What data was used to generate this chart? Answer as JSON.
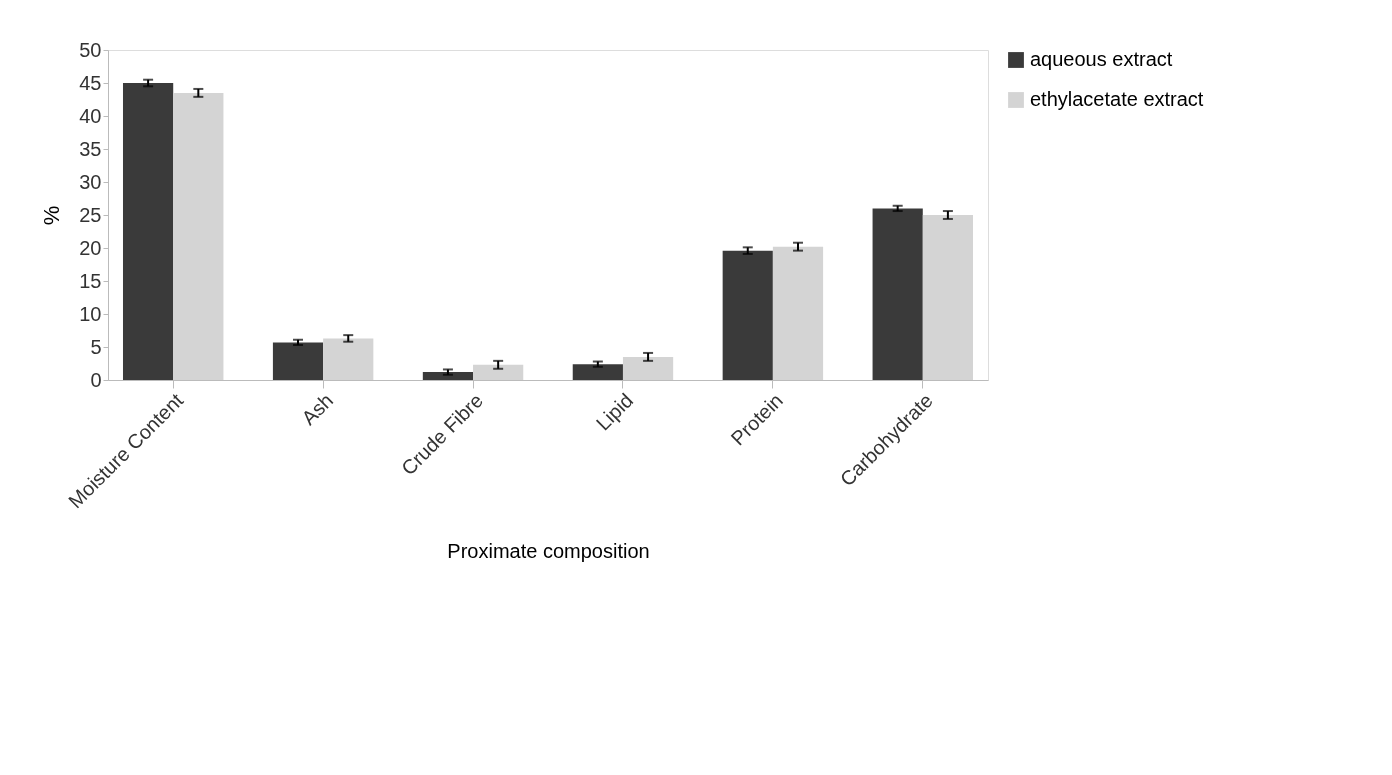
{
  "chart_data": {
    "type": "bar",
    "xlabel": "Proximate composition",
    "ylabel": "%",
    "categories": [
      "Moisture Content",
      "Ash",
      "Crude Fibre",
      "Lipid",
      "Protein",
      "Carbohydrate"
    ],
    "series": [
      {
        "name": "aqueous extract",
        "color": "#3a3a3a",
        "values": [
          45.0,
          5.7,
          1.2,
          2.4,
          19.6,
          26.0
        ],
        "errors": [
          0.5,
          0.4,
          0.4,
          0.4,
          0.5,
          0.4
        ]
      },
      {
        "name": "ethylacetate extract",
        "color": "#d4d4d4",
        "values": [
          43.5,
          6.3,
          2.3,
          3.5,
          20.2,
          25.0
        ],
        "errors": [
          0.6,
          0.5,
          0.6,
          0.6,
          0.6,
          0.6
        ]
      }
    ],
    "ylim": [
      0,
      50
    ],
    "yticks": [
      0,
      5,
      10,
      15,
      20,
      25,
      30,
      35,
      40,
      45,
      50
    ],
    "grid": false,
    "legend": "right"
  }
}
